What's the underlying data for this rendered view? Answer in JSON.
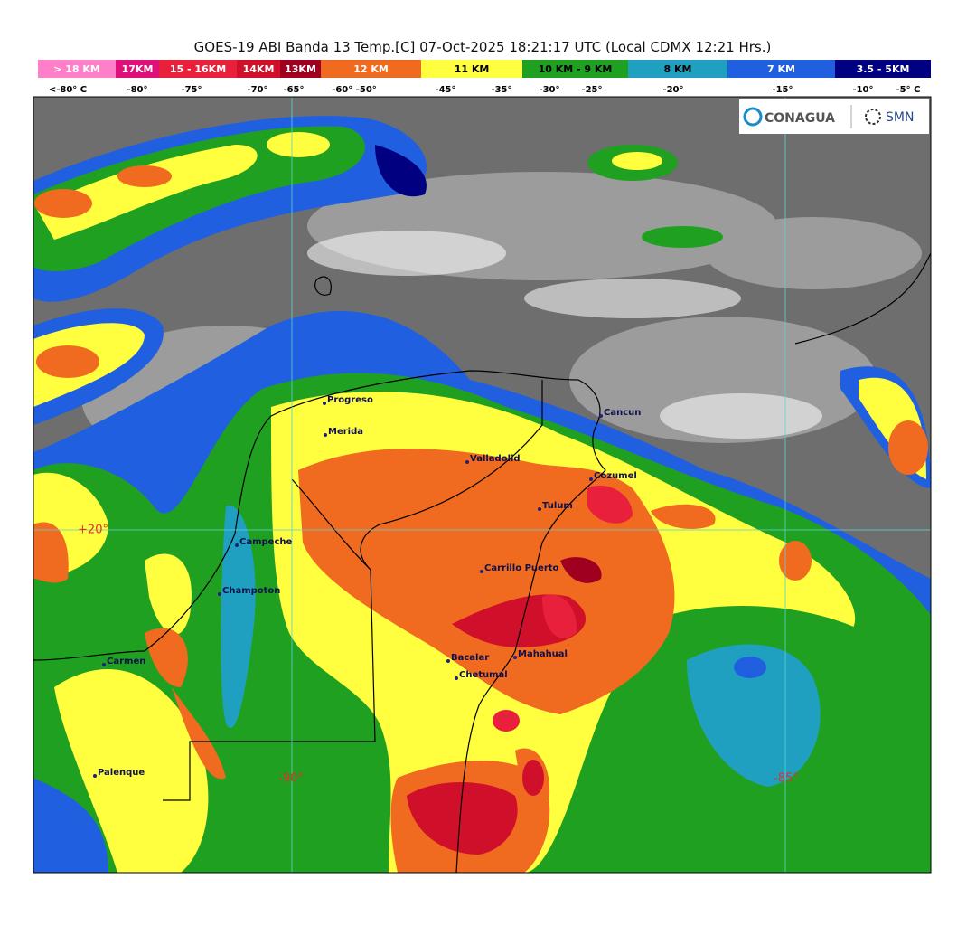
{
  "title": "GOES-19 ABI Banda 13 Temp.[C] 07-Oct-2025 18:21:17 UTC (Local CDMX  12:21 Hrs.)",
  "legend": [
    {
      "label": "> 18 KM",
      "color": "#ff80c8"
    },
    {
      "label": "17KM",
      "color": "#e0107a"
    },
    {
      "label": "15 - 16KM",
      "color": "#e8203c"
    },
    {
      "label": "14KM",
      "color": "#d0102a"
    },
    {
      "label": "13KM",
      "color": "#a00020"
    },
    {
      "label": "12 KM",
      "color": "#f06a20"
    },
    {
      "label": "11 KM",
      "color": "#ffff40"
    },
    {
      "label": "10 KM - 9 KM",
      "color": "#20a020"
    },
    {
      "label": "8 KM",
      "color": "#20a0c0"
    },
    {
      "label": "7 KM",
      "color": "#2060e0"
    },
    {
      "label": "3.5 - 5KM",
      "color": "#000080"
    }
  ],
  "temperatures": [
    "<-80° C",
    "-80°",
    "-75°",
    "-70°",
    "-65°",
    "-60° -50°",
    "-45°",
    "-35°",
    "-30°",
    "-25°",
    "-20°",
    "-15°",
    "-10°",
    "-5° C"
  ],
  "cities": [
    "Progreso",
    "Merida",
    "Valladolid",
    "Cancun",
    "Cozumel",
    "Tulum",
    "Campeche",
    "Champoton",
    "Carrillo Puerto",
    "Carmen",
    "Bacalar",
    "Mahahual",
    "Chetumal",
    "Palenque"
  ],
  "coordinates": [
    "+20°",
    "-90°",
    "-85°"
  ],
  "logos": [
    "CONAGUA",
    "SMN"
  ]
}
